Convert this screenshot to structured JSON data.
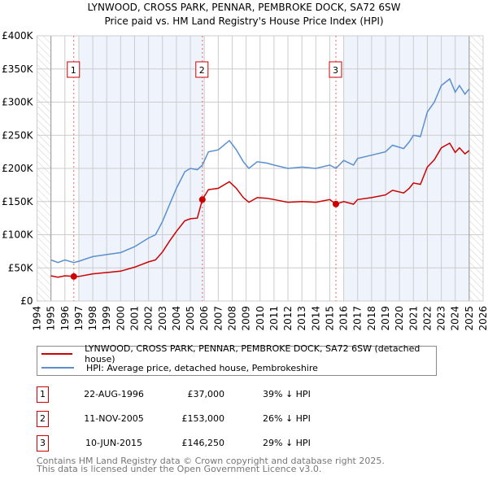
{
  "title_line1": "LYNWOOD, CROSS PARK, PENNAR, PEMBROKE DOCK, SA72 6SW",
  "title_line2": "Price paid vs. HM Land Registry's House Price Index (HPI)",
  "colors": {
    "price": "#cc0000",
    "hpi": "#5b8fd0",
    "shade": "#eef3fc",
    "grid": "#cccccc"
  },
  "chart_data": {
    "type": "line",
    "title": "LYNWOOD, CROSS PARK, PENNAR, PEMBROKE DOCK, SA72 6SW — Price paid vs. HM Land Registry's House Price Index (HPI)",
    "xlim": [
      1994,
      2026
    ],
    "ylim": [
      0,
      400000
    ],
    "x_ticks": [
      "1994",
      "1995",
      "1996",
      "1997",
      "1998",
      "1999",
      "2000",
      "2001",
      "2002",
      "2003",
      "2004",
      "2005",
      "2006",
      "2007",
      "2008",
      "2009",
      "2010",
      "2011",
      "2012",
      "2013",
      "2014",
      "2015",
      "2016",
      "2017",
      "2018",
      "2019",
      "2020",
      "2021",
      "2022",
      "2023",
      "2024",
      "2025",
      "2026"
    ],
    "y_ticks": [
      {
        "v": 0,
        "label": "£0"
      },
      {
        "v": 50000,
        "label": "£50K"
      },
      {
        "v": 100000,
        "label": "£100K"
      },
      {
        "v": 150000,
        "label": "£150K"
      },
      {
        "v": 200000,
        "label": "£200K"
      },
      {
        "v": 250000,
        "label": "£250K"
      },
      {
        "v": 300000,
        "label": "£300K"
      },
      {
        "v": 350000,
        "label": "£350K"
      },
      {
        "v": 400000,
        "label": "£400K"
      }
    ],
    "grid": true,
    "x": [
      1995,
      1995.5,
      1996,
      1996.64,
      1997,
      1998,
      1999,
      2000,
      2001,
      2002,
      2002.5,
      2003,
      2003.5,
      2004,
      2004.6,
      2005,
      2005.5,
      2005.86,
      2006.3,
      2007,
      2007.8,
      2008.3,
      2008.8,
      2009.2,
      2009.8,
      2010.5,
      2011,
      2012,
      2013,
      2014,
      2015,
      2015.44,
      2016,
      2016.7,
      2017,
      2018,
      2019,
      2019.5,
      2020.3,
      2020.7,
      2021,
      2021.5,
      2022,
      2022.5,
      2023,
      2023.6,
      2024,
      2024.3,
      2024.7,
      2025
    ],
    "series": [
      {
        "name": "LYNWOOD, CROSS PARK, PENNAR, PEMBROKE DOCK, SA72 6SW (detached house)",
        "color": "#cc0000",
        "values": [
          38000,
          36000,
          38000,
          37000,
          37000,
          41000,
          43000,
          45000,
          51000,
          59000,
          62000,
          74000,
          90000,
          105000,
          121000,
          124000,
          125000,
          153000,
          168000,
          170000,
          180000,
          170000,
          156000,
          149000,
          156000,
          155000,
          153000,
          149000,
          150000,
          149000,
          153000,
          146250,
          150000,
          146000,
          153000,
          156000,
          160000,
          167000,
          163000,
          170000,
          178000,
          176000,
          202000,
          213000,
          231000,
          238000,
          224000,
          231000,
          222000,
          227000
        ]
      },
      {
        "name": "HPI: Average price, detached house, Pembrokeshire",
        "color": "#5b8fd0",
        "values": [
          62000,
          58000,
          62000,
          58000,
          60000,
          67000,
          70000,
          73000,
          82000,
          95000,
          100000,
          120000,
          145000,
          170000,
          195000,
          200000,
          198000,
          205000,
          225000,
          228000,
          242000,
          228000,
          210000,
          200000,
          210000,
          208000,
          205000,
          200000,
          202000,
          200000,
          205000,
          200000,
          212000,
          205000,
          215000,
          220000,
          225000,
          235000,
          230000,
          240000,
          250000,
          248000,
          285000,
          300000,
          325000,
          335000,
          315000,
          325000,
          312000,
          320000
        ]
      }
    ],
    "shaded_ranges": [
      [
        1997,
        2006
      ],
      [
        2016,
        2025
      ]
    ],
    "hatched_ranges": [
      [
        1994,
        1995
      ],
      [
        2025,
        2026
      ]
    ],
    "sales": [
      {
        "n": "1",
        "x": 1996.64,
        "y": 37000
      },
      {
        "n": "2",
        "x": 2005.86,
        "y": 153000
      },
      {
        "n": "3",
        "x": 2015.44,
        "y": 146250
      }
    ]
  },
  "legend": {
    "price": "LYNWOOD, CROSS PARK, PENNAR, PEMBROKE DOCK, SA72 6SW (detached house)",
    "hpi": "HPI: Average price, detached house, Pembrokeshire"
  },
  "sales_table": [
    {
      "n": "1",
      "date": "22-AUG-1996",
      "price": "£37,000",
      "hpi": "39% ↓ HPI"
    },
    {
      "n": "2",
      "date": "11-NOV-2005",
      "price": "£153,000",
      "hpi": "26% ↓ HPI"
    },
    {
      "n": "3",
      "date": "10-JUN-2015",
      "price": "£146,250",
      "hpi": "29% ↓ HPI"
    }
  ],
  "footer": {
    "line1": "Contains HM Land Registry data © Crown copyright and database right 2025.",
    "line2": "This data is licensed under the Open Government Licence v3.0."
  }
}
